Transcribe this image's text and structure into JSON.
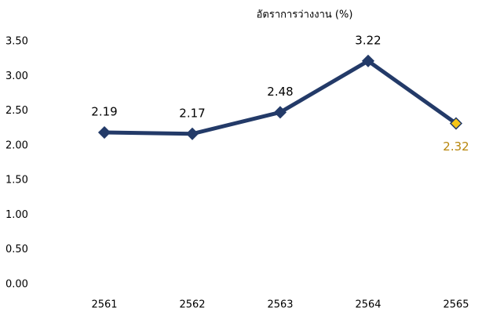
{
  "chart_data": {
    "type": "line",
    "title": "อัตราการว่างงาน (%)",
    "categories": [
      "2561",
      "2562",
      "2563",
      "2564",
      "2565"
    ],
    "series": [
      {
        "name": "อัตราการว่างงาน",
        "color": "#233a68",
        "values": [
          2.19,
          2.17,
          2.48,
          3.22,
          2.32
        ],
        "marker_colors": [
          "#233a68",
          "#233a68",
          "#233a68",
          "#233a68",
          "#f5c518"
        ],
        "label_colors": [
          "#000000",
          "#000000",
          "#000000",
          "#000000",
          "#b8860b"
        ]
      }
    ],
    "ylim": [
      0,
      3.5
    ],
    "yticks": [
      {
        "value": 0,
        "label": "0.00"
      },
      {
        "value": 0.5,
        "label": "0.50"
      },
      {
        "value": 1,
        "label": "1.00"
      },
      {
        "value": 1.5,
        "label": "1.50"
      },
      {
        "value": 2,
        "label": "2.00"
      },
      {
        "value": 2.5,
        "label": "2.50"
      },
      {
        "value": 3,
        "label": "3.00"
      },
      {
        "value": 3.5,
        "label": "3.50"
      }
    ],
    "grid": false
  }
}
